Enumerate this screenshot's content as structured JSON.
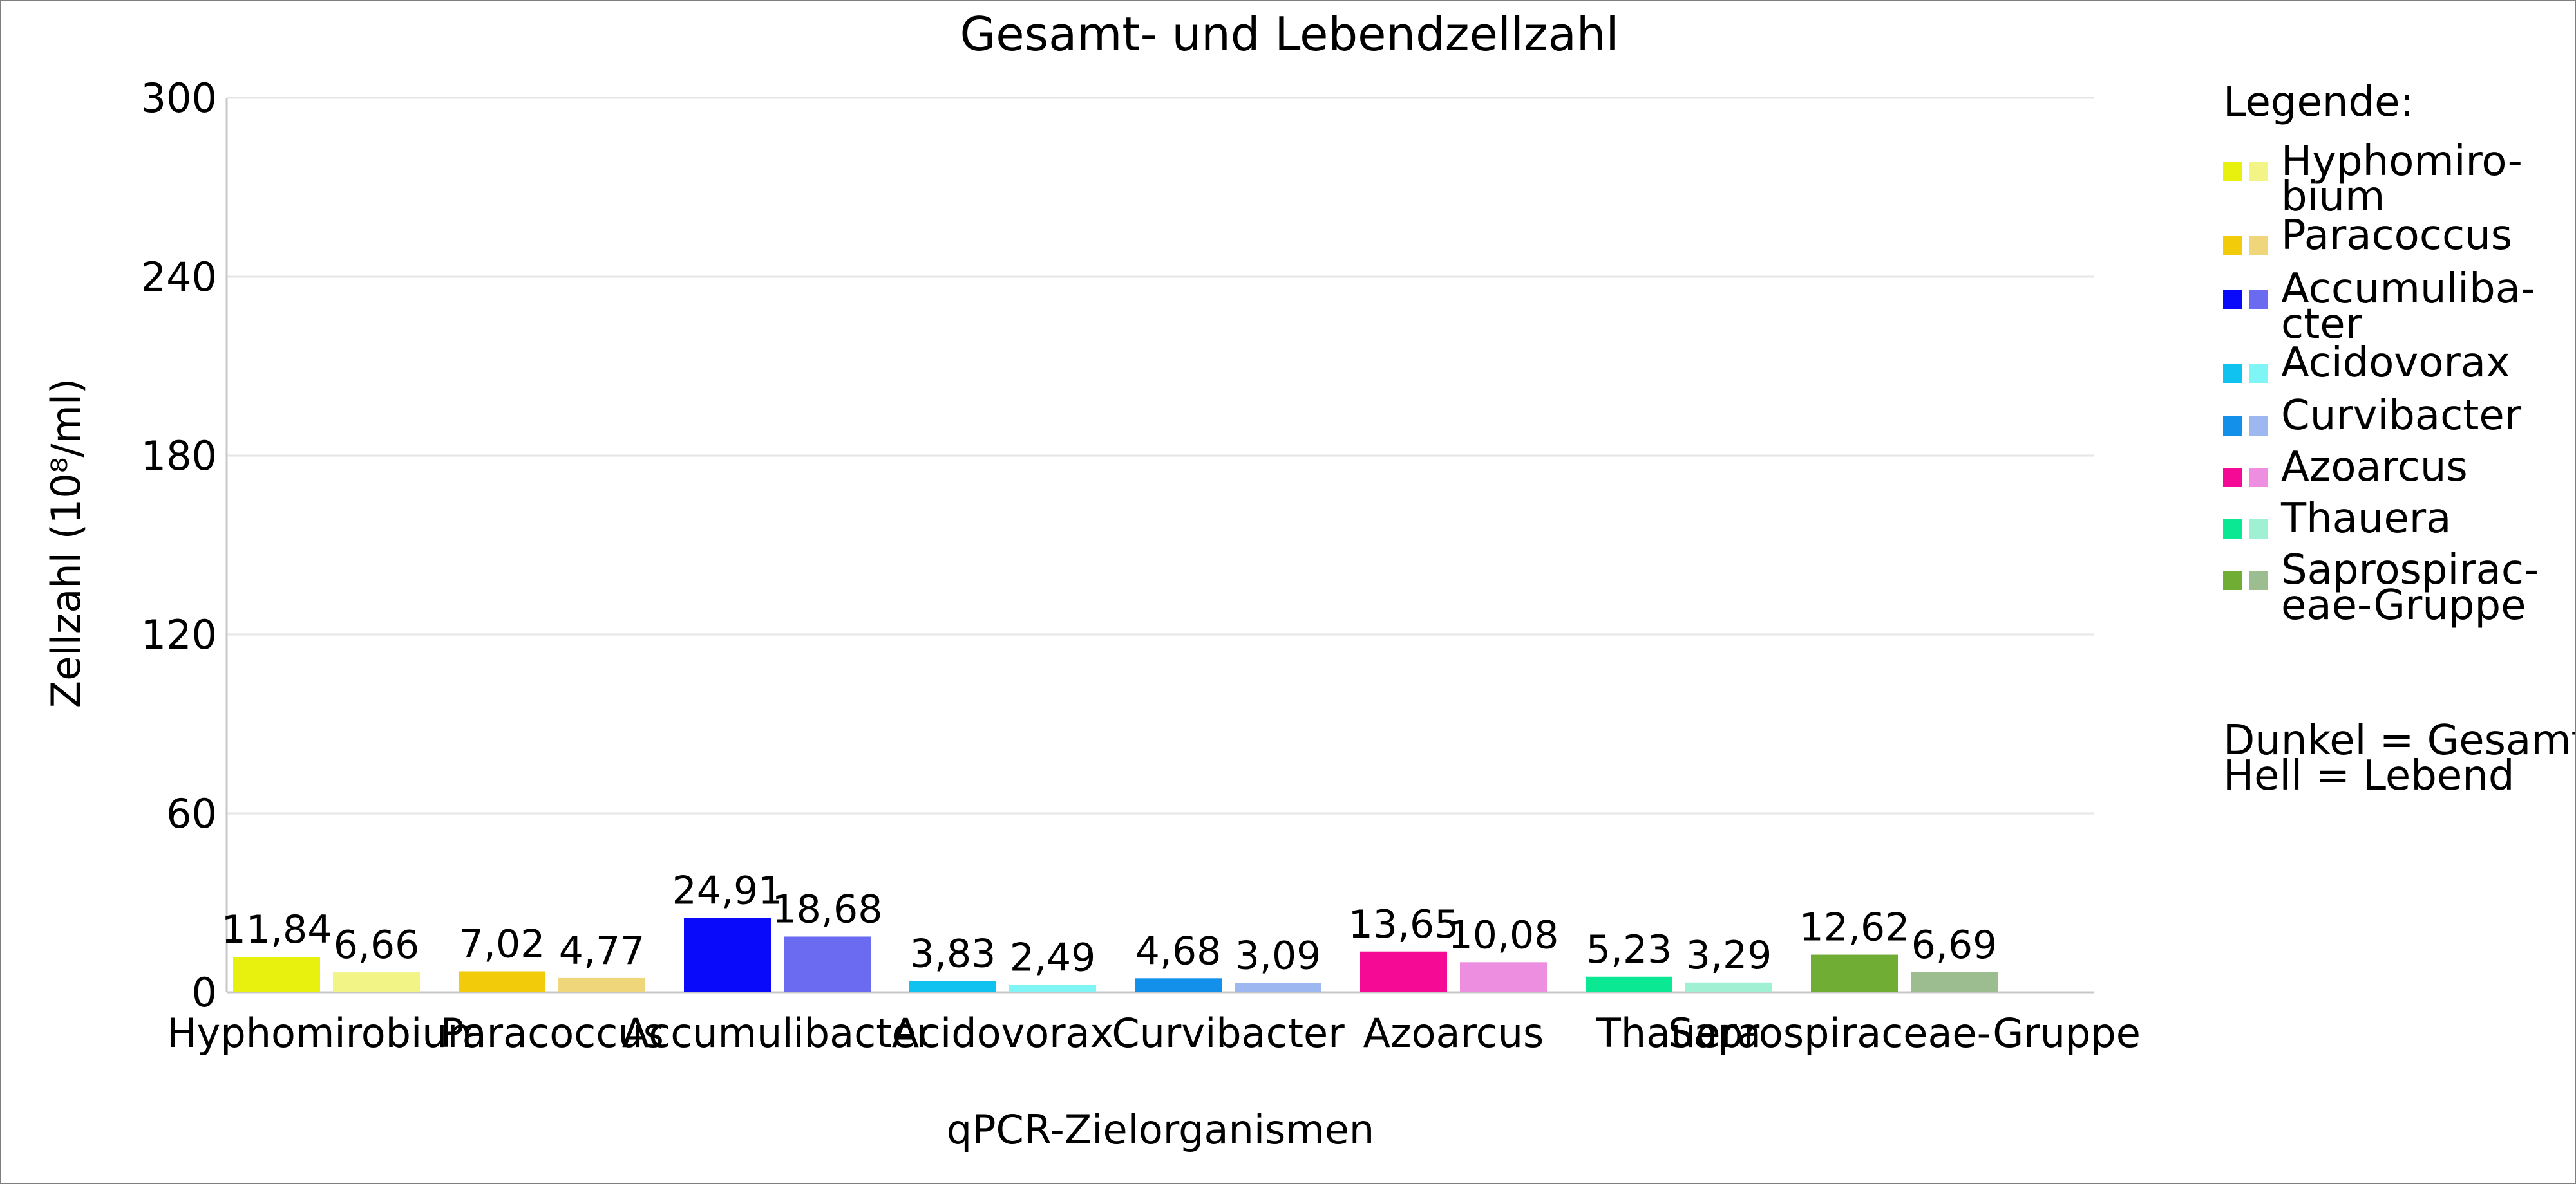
{
  "chart_data": {
    "type": "bar",
    "title": "Gesamt- und Lebendzellzahl",
    "xlabel": "qPCR-Zielorganismen",
    "ylabel": "Zellzahl (10⁸/ml)",
    "ylim": [
      0,
      300
    ],
    "yticks": [
      0,
      60,
      120,
      180,
      240,
      300
    ],
    "grid": true,
    "legend_position": "right",
    "categories": [
      "Hyphomirobium",
      "Paracoccus",
      "Accumulibacter",
      "Acidovorax",
      "Curvibacter",
      "Azoarcus",
      "Thauera",
      "Saprospiraceae-Gruppe"
    ],
    "series": [
      {
        "values": [
          11.84,
          7.02,
          24.91,
          3.83,
          4.68,
          13.65,
          5.23,
          12.62
        ]
      },
      {
        "values": [
          6.66,
          4.77,
          18.68,
          2.49,
          3.09,
          10.08,
          3.29,
          6.69
        ]
      }
    ],
    "value_labels": [
      [
        "11,84",
        "7,02",
        "24,91",
        "3,83",
        "4,68",
        "13,65",
        "5,23",
        "12,62"
      ],
      [
        "6,66",
        "4,77",
        "18,68",
        "2,49",
        "3,09",
        "10,08",
        "3,29",
        "6,69"
      ]
    ],
    "colors_dark": [
      "#e8f00e",
      "#f2cc0a",
      "#0a0afa",
      "#0fc2f0",
      "#1290ea",
      "#f50a96",
      "#0ae894",
      "#70ad35"
    ],
    "colors_light": [
      "#f2f585",
      "#f0d67a",
      "#6b6bf2",
      "#80f5f5",
      "#9db8f0",
      "#ee8ee0",
      "#a0f0d4",
      "#9cbd8f"
    ],
    "legend": {
      "title": "Legende:",
      "entries": [
        [
          "Hyphomiro-",
          "bium"
        ],
        [
          "Paracoccus"
        ],
        [
          "Accumuliba-",
          "cter"
        ],
        [
          "Acidovorax"
        ],
        [
          "Curvibacter"
        ],
        [
          "Azoarcus"
        ],
        [
          "Thauera"
        ],
        [
          "Saprospirac-",
          "eae-Gruppe"
        ]
      ],
      "notes": [
        "Dunkel = Gesamt",
        "Hell = Lebend"
      ]
    }
  }
}
